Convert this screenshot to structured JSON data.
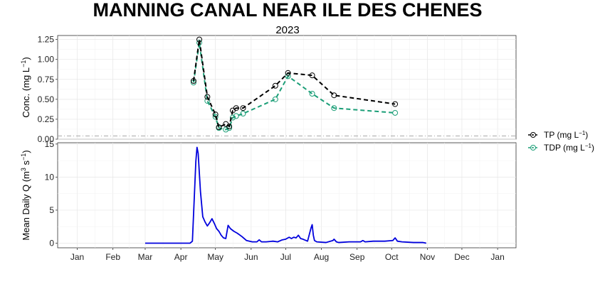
{
  "chart_data": [
    {
      "type": "line",
      "title": "MANNING CANAL NEAR ILE DES CHENES",
      "subtitle": "2023",
      "ylabel": "Conc. (mg L",
      "ylabel_sup": "−1",
      "ylabel_end": ")",
      "ylim": [
        0,
        1.3
      ],
      "yticks": [
        0,
        0.25,
        0.5,
        0.75,
        1.0,
        1.25
      ],
      "ytick_labels": [
        "0.00",
        "0.25",
        "0.50",
        "0.75",
        "1.00",
        "1.25"
      ],
      "grid": true,
      "reference_line": {
        "y": 0.04,
        "style": "dash-dot",
        "color": "#aaaaaa"
      },
      "series": [
        {
          "name": "TP",
          "name_unit": "(mg L",
          "name_sup": "−1",
          "name_end": ")",
          "color": "#000000",
          "marker": "open-circle",
          "x": [
            "2023-04-12",
            "2023-04-17",
            "2023-04-24",
            "2023-05-01",
            "2023-05-04",
            "2023-05-10",
            "2023-05-13",
            "2023-05-16",
            "2023-05-19",
            "2023-05-25",
            "2023-06-22",
            "2023-07-03",
            "2023-07-24",
            "2023-08-12",
            "2023-10-04"
          ],
          "y": [
            0.73,
            1.25,
            0.53,
            0.31,
            0.15,
            0.19,
            0.16,
            0.36,
            0.39,
            0.39,
            0.67,
            0.83,
            0.8,
            0.55,
            0.44
          ]
        },
        {
          "name": "TDP",
          "name_unit": "(mg L",
          "name_sup": "−1",
          "name_end": ")",
          "color": "#1b9e77",
          "marker": "open-circle",
          "x": [
            "2023-04-12",
            "2023-04-17",
            "2023-04-24",
            "2023-05-01",
            "2023-05-04",
            "2023-05-10",
            "2023-05-13",
            "2023-05-16",
            "2023-05-19",
            "2023-05-25",
            "2023-06-22",
            "2023-07-03",
            "2023-07-24",
            "2023-08-12",
            "2023-10-04"
          ],
          "y": [
            0.71,
            1.21,
            0.48,
            0.28,
            0.14,
            0.12,
            0.14,
            0.27,
            0.29,
            0.32,
            0.5,
            0.79,
            0.57,
            0.39,
            0.33
          ]
        }
      ]
    },
    {
      "type": "line",
      "ylabel": "Mean Daily Q (m",
      "ylabel_sup": "3",
      "ylabel_mid": " s",
      "ylabel_sup2": "−1",
      "ylabel_end": ")",
      "xlabel": "",
      "ylim": [
        -0.7,
        15.2
      ],
      "yticks": [
        0,
        5,
        10,
        15
      ],
      "ytick_labels": [
        "0",
        "5",
        "10",
        "15"
      ],
      "xlim": [
        "2022-12-15",
        "2024-01-17"
      ],
      "xticks": [
        "2023-01-01",
        "2023-02-01",
        "2023-03-01",
        "2023-04-01",
        "2023-05-01",
        "2023-06-01",
        "2023-07-01",
        "2023-08-01",
        "2023-09-01",
        "2023-10-01",
        "2023-11-01",
        "2023-12-01",
        "2024-01-01"
      ],
      "xtick_labels": [
        "Jan",
        "Feb",
        "Mar",
        "Apr",
        "May",
        "Jun",
        "Jul",
        "Aug",
        "Sep",
        "Oct",
        "Nov",
        "Dec",
        "Jan"
      ],
      "grid": true,
      "series": [
        {
          "name": "",
          "color": "#0000dd",
          "x": [
            "2023-03-01",
            "2023-04-09",
            "2023-04-11",
            "2023-04-14",
            "2023-04-15",
            "2023-04-16",
            "2023-04-18",
            "2023-04-20",
            "2023-04-22",
            "2023-04-24",
            "2023-04-26",
            "2023-04-28",
            "2023-04-30",
            "2023-05-02",
            "2023-05-04",
            "2023-05-06",
            "2023-05-08",
            "2023-05-10",
            "2023-05-12",
            "2023-05-14",
            "2023-05-17",
            "2023-05-20",
            "2023-05-24",
            "2023-05-28",
            "2023-06-02",
            "2023-06-06",
            "2023-06-08",
            "2023-06-10",
            "2023-06-14",
            "2023-06-20",
            "2023-06-24",
            "2023-06-28",
            "2023-07-01",
            "2023-07-04",
            "2023-07-06",
            "2023-07-08",
            "2023-07-10",
            "2023-07-12",
            "2023-07-14",
            "2023-07-16",
            "2023-07-20",
            "2023-07-23",
            "2023-07-24",
            "2023-07-25",
            "2023-07-26",
            "2023-07-28",
            "2023-08-05",
            "2023-08-11",
            "2023-08-12",
            "2023-08-14",
            "2023-08-16",
            "2023-08-25",
            "2023-09-04",
            "2023-09-06",
            "2023-09-08",
            "2023-09-15",
            "2023-09-25",
            "2023-10-02",
            "2023-10-04",
            "2023-10-06",
            "2023-10-10",
            "2023-10-20",
            "2023-10-28",
            "2023-10-31"
          ],
          "y": [
            0.0,
            0.0,
            0.3,
            12.4,
            14.5,
            13.6,
            7.8,
            4.0,
            3.2,
            2.6,
            3.1,
            3.7,
            3.0,
            2.2,
            1.8,
            1.2,
            0.8,
            0.7,
            2.7,
            2.2,
            1.8,
            1.5,
            1.0,
            0.4,
            0.2,
            0.2,
            0.5,
            0.2,
            0.2,
            0.3,
            0.2,
            0.5,
            0.6,
            0.9,
            0.7,
            0.9,
            0.8,
            1.2,
            0.7,
            0.6,
            0.3,
            2.3,
            2.8,
            1.2,
            0.4,
            0.2,
            0.1,
            0.4,
            0.6,
            0.2,
            0.1,
            0.2,
            0.2,
            0.4,
            0.2,
            0.3,
            0.3,
            0.4,
            0.8,
            0.3,
            0.2,
            0.1,
            0.1,
            0.0
          ]
        }
      ]
    }
  ]
}
